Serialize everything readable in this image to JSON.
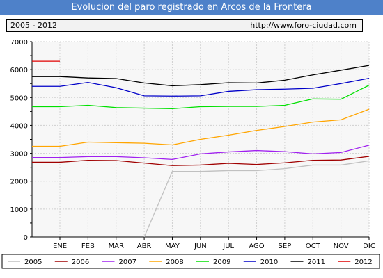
{
  "header": {
    "title": "Evolucion del paro registrado en Arcos de la Frontera",
    "range_label": "2005 - 2012",
    "site_label": "http://www.foro-ciudad.com"
  },
  "chart_data": {
    "type": "line",
    "categories": [
      "ENE",
      "FEB",
      "MAR",
      "ABR",
      "MAY",
      "JUN",
      "JUL",
      "AGO",
      "SEP",
      "OCT",
      "NOV",
      "DIC"
    ],
    "ylim": [
      0,
      7000
    ],
    "yticks": [
      0,
      1000,
      2000,
      3000,
      4000,
      5000,
      6000,
      7000
    ],
    "grid": true,
    "legend_position": "bottom",
    "series": [
      {
        "name": "2005",
        "color": "#c0c0c0",
        "values": [
          null,
          null,
          null,
          0,
          2350,
          2350,
          2380,
          2380,
          2450,
          2580,
          2580,
          2730
        ]
      },
      {
        "name": "2006",
        "color": "#a00000",
        "values": [
          2680,
          2750,
          2740,
          2650,
          2560,
          2580,
          2640,
          2600,
          2660,
          2750,
          2760,
          2890
        ]
      },
      {
        "name": "2007",
        "color": "#a020f0",
        "values": [
          2850,
          2880,
          2880,
          2840,
          2780,
          2980,
          3050,
          3100,
          3060,
          2980,
          3030,
          3290
        ]
      },
      {
        "name": "2008",
        "color": "#ffa500",
        "values": [
          3250,
          3400,
          3380,
          3360,
          3300,
          3500,
          3650,
          3820,
          3960,
          4120,
          4200,
          4580
        ]
      },
      {
        "name": "2009",
        "color": "#00e000",
        "values": [
          4670,
          4720,
          4640,
          4620,
          4600,
          4670,
          4680,
          4680,
          4720,
          4950,
          4940,
          5440
        ]
      },
      {
        "name": "2010",
        "color": "#0000c8",
        "values": [
          5400,
          5540,
          5350,
          5060,
          5050,
          5060,
          5220,
          5280,
          5300,
          5330,
          5500,
          5690
        ]
      },
      {
        "name": "2011",
        "color": "#000000",
        "values": [
          5750,
          5700,
          5680,
          5520,
          5420,
          5460,
          5530,
          5520,
          5620,
          5810,
          5980,
          6150
        ]
      },
      {
        "name": "2012",
        "color": "#e00000",
        "values": [
          6300,
          null,
          null,
          null,
          null,
          null,
          null,
          null,
          null,
          null,
          null,
          null
        ]
      }
    ]
  }
}
